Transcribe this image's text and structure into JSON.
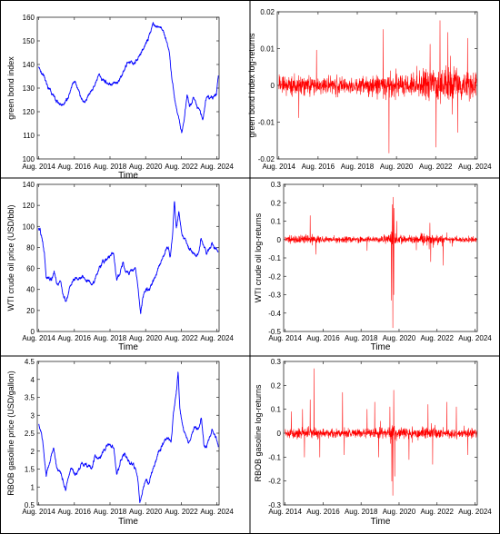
{
  "panels": [
    {
      "id": "green-bond-index",
      "type": "line",
      "color": "#0000ff",
      "xlabel": "Time",
      "ylabel": "green bond index",
      "x_range": [
        2014.5,
        2024.7
      ],
      "ylim": [
        100,
        160
      ],
      "yticks": [
        "100",
        "110",
        "120",
        "130",
        "140",
        "150",
        "160"
      ],
      "xticks": [
        "Aug. 2014",
        "Aug. 2016",
        "Aug. 2018",
        "Aug. 2020",
        "Aug. 2022",
        "Aug. 2024"
      ],
      "series_name": "",
      "anchors": [
        [
          2014.58,
          139
        ],
        [
          2014.9,
          134
        ],
        [
          2015.3,
          128
        ],
        [
          2015.6,
          124
        ],
        [
          2015.9,
          123
        ],
        [
          2016.2,
          126
        ],
        [
          2016.4,
          131
        ],
        [
          2016.6,
          134
        ],
        [
          2016.9,
          127
        ],
        [
          2017.1,
          124
        ],
        [
          2017.4,
          127
        ],
        [
          2017.7,
          131
        ],
        [
          2017.95,
          136
        ],
        [
          2018.1,
          134
        ],
        [
          2018.4,
          133
        ],
        [
          2018.7,
          131
        ],
        [
          2019.0,
          133
        ],
        [
          2019.3,
          136
        ],
        [
          2019.6,
          141
        ],
        [
          2019.9,
          140
        ],
        [
          2020.1,
          142
        ],
        [
          2020.3,
          144
        ],
        [
          2020.5,
          148
        ],
        [
          2020.7,
          150
        ],
        [
          2020.85,
          155
        ],
        [
          2021.0,
          158
        ],
        [
          2021.2,
          156
        ],
        [
          2021.5,
          155
        ],
        [
          2021.7,
          151
        ],
        [
          2021.9,
          146
        ],
        [
          2022.05,
          135
        ],
        [
          2022.2,
          126
        ],
        [
          2022.35,
          121
        ],
        [
          2022.5,
          115
        ],
        [
          2022.6,
          111
        ],
        [
          2022.75,
          118
        ],
        [
          2022.9,
          127
        ],
        [
          2023.05,
          122
        ],
        [
          2023.25,
          125
        ],
        [
          2023.4,
          124
        ],
        [
          2023.6,
          121
        ],
        [
          2023.8,
          118
        ],
        [
          2023.95,
          125
        ],
        [
          2024.1,
          127
        ],
        [
          2024.3,
          126
        ],
        [
          2024.55,
          127
        ],
        [
          2024.66,
          134
        ]
      ]
    },
    {
      "id": "green-bond-log-returns",
      "type": "line",
      "color": "#ff0000",
      "xlabel": "",
      "ylabel": "green bond index log-returns",
      "x_range": [
        2014.5,
        2024.7
      ],
      "ylim": [
        -0.025,
        0.025
      ],
      "yticks": [
        "-0.02",
        "-0.01",
        "0",
        "0.01",
        "0.02"
      ],
      "xticks": [
        "Aug. 2014",
        "Aug. 2016",
        "Aug. 2018",
        "Aug. 2020",
        "Aug. 2022",
        "Aug. 2024"
      ],
      "series_name": "",
      "noise_base": 0.004,
      "vol_segments": [
        [
          2014.5,
          1.0
        ],
        [
          2016.0,
          0.9
        ],
        [
          2019.0,
          0.85
        ],
        [
          2020.0,
          1.25
        ],
        [
          2020.5,
          0.9
        ],
        [
          2021.5,
          1.0
        ],
        [
          2022.0,
          1.6
        ],
        [
          2023.0,
          1.8
        ],
        [
          2024.0,
          1.6
        ],
        [
          2024.7,
          1.4
        ]
      ],
      "spikes": [
        [
          2015.6,
          -0.011
        ],
        [
          2016.5,
          0.012
        ],
        [
          2019.9,
          0.019
        ],
        [
          2020.2,
          -0.023
        ],
        [
          2022.3,
          0.014
        ],
        [
          2022.6,
          -0.021
        ],
        [
          2022.8,
          0.022
        ],
        [
          2023.2,
          0.018
        ],
        [
          2023.7,
          -0.016
        ],
        [
          2024.2,
          0.016
        ]
      ]
    },
    {
      "id": "wti-crude-oil-price",
      "type": "line",
      "color": "#0000ff",
      "xlabel": "Time",
      "ylabel": "WTI crude oil price (USD/bbl)",
      "x_range": [
        2014.5,
        2024.7
      ],
      "ylim": [
        0,
        140
      ],
      "yticks": [
        "0",
        "20",
        "40",
        "60",
        "80",
        "100",
        "120",
        "140"
      ],
      "xticks": [
        "Aug. 2014",
        "Aug. 2016",
        "Aug. 2018",
        "Aug. 2020",
        "Aug. 2022",
        "Aug. 2024"
      ],
      "series_name": "",
      "anchors": [
        [
          2014.58,
          97
        ],
        [
          2014.75,
          91
        ],
        [
          2014.9,
          75
        ],
        [
          2015.0,
          52
        ],
        [
          2015.3,
          48
        ],
        [
          2015.45,
          59
        ],
        [
          2015.6,
          45
        ],
        [
          2015.8,
          46
        ],
        [
          2016.0,
          32
        ],
        [
          2016.1,
          28
        ],
        [
          2016.3,
          40
        ],
        [
          2016.5,
          48
        ],
        [
          2016.9,
          52
        ],
        [
          2017.2,
          50
        ],
        [
          2017.5,
          45
        ],
        [
          2017.8,
          52
        ],
        [
          2018.0,
          62
        ],
        [
          2018.3,
          66
        ],
        [
          2018.5,
          70
        ],
        [
          2018.8,
          74
        ],
        [
          2018.95,
          50
        ],
        [
          2019.1,
          54
        ],
        [
          2019.3,
          64
        ],
        [
          2019.5,
          56
        ],
        [
          2019.8,
          58
        ],
        [
          2020.0,
          60
        ],
        [
          2020.1,
          50
        ],
        [
          2020.25,
          25
        ],
        [
          2020.3,
          17
        ],
        [
          2020.4,
          30
        ],
        [
          2020.55,
          40
        ],
        [
          2020.8,
          40
        ],
        [
          2021.0,
          48
        ],
        [
          2021.3,
          62
        ],
        [
          2021.6,
          72
        ],
        [
          2021.85,
          82
        ],
        [
          2021.95,
          70
        ],
        [
          2022.1,
          92
        ],
        [
          2022.2,
          123
        ],
        [
          2022.3,
          100
        ],
        [
          2022.45,
          115
        ],
        [
          2022.6,
          95
        ],
        [
          2022.8,
          88
        ],
        [
          2023.0,
          78
        ],
        [
          2023.3,
          72
        ],
        [
          2023.5,
          70
        ],
        [
          2023.7,
          88
        ],
        [
          2023.85,
          80
        ],
        [
          2024.0,
          72
        ],
        [
          2024.3,
          82
        ],
        [
          2024.5,
          78
        ],
        [
          2024.66,
          75
        ]
      ]
    },
    {
      "id": "wti-log-returns",
      "type": "line",
      "color": "#ff0000",
      "xlabel": "Time",
      "ylabel": "WTI crude oil log-returns",
      "x_range": [
        2014.5,
        2024.7
      ],
      "ylim": [
        -0.5,
        0.3
      ],
      "yticks": [
        "-0.5",
        "-0.4",
        "-0.3",
        "-0.2",
        "-0.1",
        "0",
        "0.1",
        "0.2",
        "0.3"
      ],
      "xticks": [
        "Aug. 2014",
        "Aug. 2016",
        "Aug. 2018",
        "Aug. 2020",
        "Aug. 2022",
        "Aug. 2024"
      ],
      "series_name": "",
      "noise_base": 0.022,
      "vol_segments": [
        [
          2014.5,
          1.0
        ],
        [
          2015.0,
          1.3
        ],
        [
          2016.0,
          1.4
        ],
        [
          2016.5,
          0.9
        ],
        [
          2018.5,
          1.0
        ],
        [
          2019.0,
          0.8
        ],
        [
          2020.0,
          1.3
        ],
        [
          2020.2,
          3.5
        ],
        [
          2020.5,
          1.2
        ],
        [
          2021.0,
          0.9
        ],
        [
          2022.0,
          1.6
        ],
        [
          2022.6,
          1.2
        ],
        [
          2023.0,
          0.8
        ],
        [
          2024.7,
          0.8
        ]
      ],
      "spikes": [
        [
          2015.9,
          0.13
        ],
        [
          2016.2,
          -0.08
        ],
        [
          2018.9,
          -0.06
        ],
        [
          2020.18,
          -0.33
        ],
        [
          2020.22,
          0.19
        ],
        [
          2020.25,
          -0.48
        ],
        [
          2020.27,
          0.23
        ],
        [
          2020.3,
          -0.3
        ],
        [
          2020.33,
          0.17
        ],
        [
          2020.45,
          0.1
        ],
        [
          2022.2,
          0.09
        ],
        [
          2022.25,
          -0.12
        ],
        [
          2022.9,
          -0.14
        ]
      ]
    },
    {
      "id": "rbob-gasoline-price",
      "type": "line",
      "color": "#0000ff",
      "xlabel": "Time",
      "ylabel": "RBOB gasoline price (USD/gallon)",
      "x_range": [
        2014.5,
        2024.7
      ],
      "ylim": [
        0.5,
        4.5
      ],
      "yticks": [
        "0.5",
        "1",
        "1.5",
        "2",
        "2.5",
        "3",
        "3.5",
        "4",
        "4.5"
      ],
      "xticks": [
        "Aug. 2014",
        "Aug. 2016",
        "Aug. 2018",
        "Aug. 2020",
        "Aug. 2022",
        "Aug. 2024"
      ],
      "series_name": "",
      "anchors": [
        [
          2014.58,
          2.75
        ],
        [
          2014.8,
          2.3
        ],
        [
          2015.0,
          1.35
        ],
        [
          2015.2,
          1.75
        ],
        [
          2015.4,
          2.15
        ],
        [
          2015.6,
          1.6
        ],
        [
          2015.8,
          1.4
        ],
        [
          2016.0,
          1.05
        ],
        [
          2016.1,
          0.95
        ],
        [
          2016.4,
          1.55
        ],
        [
          2016.7,
          1.35
        ],
        [
          2017.0,
          1.6
        ],
        [
          2017.3,
          1.6
        ],
        [
          2017.6,
          1.55
        ],
        [
          2017.75,
          1.85
        ],
        [
          2018.0,
          1.8
        ],
        [
          2018.3,
          2.05
        ],
        [
          2018.5,
          2.15
        ],
        [
          2018.8,
          2.1
        ],
        [
          2018.95,
          1.35
        ],
        [
          2019.2,
          1.7
        ],
        [
          2019.4,
          1.95
        ],
        [
          2019.6,
          1.7
        ],
        [
          2019.8,
          1.65
        ],
        [
          2020.0,
          1.55
        ],
        [
          2020.15,
          1.2
        ],
        [
          2020.25,
          0.6
        ],
        [
          2020.4,
          0.85
        ],
        [
          2020.6,
          1.2
        ],
        [
          2020.8,
          1.15
        ],
        [
          2021.0,
          1.5
        ],
        [
          2021.3,
          2.0
        ],
        [
          2021.6,
          2.2
        ],
        [
          2021.8,
          2.4
        ],
        [
          2022.0,
          2.2
        ],
        [
          2022.15,
          3.1
        ],
        [
          2022.3,
          3.6
        ],
        [
          2022.4,
          4.2
        ],
        [
          2022.5,
          3.2
        ],
        [
          2022.7,
          2.6
        ],
        [
          2022.9,
          2.4
        ],
        [
          2023.0,
          2.2
        ],
        [
          2023.3,
          2.75
        ],
        [
          2023.5,
          2.6
        ],
        [
          2023.7,
          2.95
        ],
        [
          2023.85,
          2.2
        ],
        [
          2024.0,
          2.1
        ],
        [
          2024.3,
          2.55
        ],
        [
          2024.5,
          2.4
        ],
        [
          2024.66,
          2.15
        ]
      ]
    },
    {
      "id": "rbob-log-returns",
      "type": "line",
      "color": "#ff0000",
      "xlabel": "Time",
      "ylabel": "RBOB gasoline log-returns",
      "x_range": [
        2014.5,
        2024.7
      ],
      "ylim": [
        -0.3,
        0.3
      ],
      "yticks": [
        "-0.3",
        "-0.2",
        "-0.1",
        "0",
        "0.1",
        "0.2",
        "0.3"
      ],
      "xticks": [
        "Aug. 2014",
        "Aug. 2016",
        "Aug. 2018",
        "Aug. 2020",
        "Aug. 2022",
        "Aug. 2024"
      ],
      "series_name": "",
      "noise_base": 0.024,
      "vol_segments": [
        [
          2014.5,
          0.9
        ],
        [
          2015.0,
          1.1
        ],
        [
          2016.0,
          1.0
        ],
        [
          2018.0,
          0.9
        ],
        [
          2020.0,
          1.1
        ],
        [
          2020.2,
          2.0
        ],
        [
          2020.5,
          1.0
        ],
        [
          2021.5,
          1.0
        ],
        [
          2022.0,
          1.4
        ],
        [
          2022.6,
          1.1
        ],
        [
          2023.0,
          0.9
        ],
        [
          2024.7,
          0.9
        ]
      ],
      "spikes": [
        [
          2014.9,
          0.09
        ],
        [
          2015.5,
          0.1
        ],
        [
          2015.6,
          -0.1
        ],
        [
          2015.9,
          0.14
        ],
        [
          2016.1,
          0.27
        ],
        [
          2016.4,
          -0.1
        ],
        [
          2017.6,
          0.17
        ],
        [
          2017.7,
          -0.09
        ],
        [
          2018.9,
          0.1
        ],
        [
          2019.3,
          0.13
        ],
        [
          2019.5,
          -0.1
        ],
        [
          2020.1,
          0.11
        ],
        [
          2020.2,
          -0.2
        ],
        [
          2020.25,
          -0.26
        ],
        [
          2020.3,
          0.18
        ],
        [
          2020.35,
          -0.18
        ],
        [
          2021.1,
          -0.11
        ],
        [
          2022.1,
          0.12
        ],
        [
          2022.35,
          -0.13
        ],
        [
          2023.1,
          0.13
        ],
        [
          2023.6,
          0.11
        ],
        [
          2024.2,
          -0.09
        ]
      ]
    }
  ]
}
